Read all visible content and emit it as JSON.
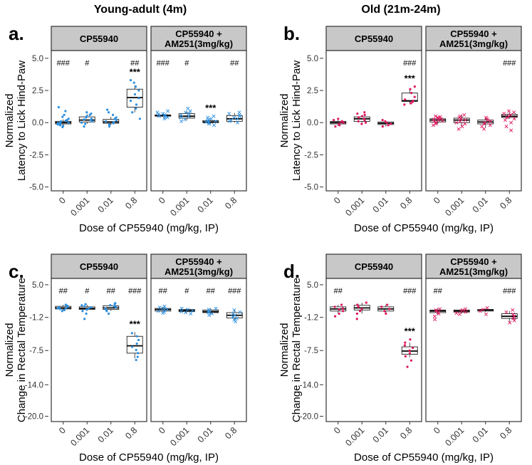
{
  "column_titles": [
    "Young-adult (4m)",
    "Old (21m-24m)"
  ],
  "colors": {
    "young": "#2b8fe0",
    "old": "#e0165f",
    "strip_bg": "#c8c8c8",
    "frame": "#333333",
    "axis_text": "#333333"
  },
  "chart_data": [
    {
      "panel_letter": "a.",
      "type": "box",
      "group": "young",
      "ylabel_lines": [
        "Normalized",
        "Latency to Lick Hind-Paw"
      ],
      "xlabel": "Dose of CP55940 (mg/kg, IP)",
      "ylim": [
        -5.3,
        5.6
      ],
      "yticks": [
        5.0,
        2.5,
        0.0,
        -2.5,
        -5.0
      ],
      "ytick_labels": [
        "5.0",
        "2.5",
        "0.0",
        "-2.5",
        "-5.0"
      ],
      "categories": [
        "0",
        "0.001",
        "0.01",
        "0.8"
      ],
      "facets": [
        {
          "strip_lines": [
            "CP55940"
          ],
          "marker": "dot",
          "boxes": [
            [
              -0.25,
              -0.1,
              0.0,
              0.1,
              0.25
            ],
            [
              -0.1,
              0.05,
              0.2,
              0.45,
              0.65
            ],
            [
              -0.2,
              -0.05,
              0.05,
              0.25,
              0.45
            ],
            [
              0.8,
              1.2,
              1.95,
              2.6,
              2.9
            ]
          ],
          "points": [
            [
              -0.35,
              -0.25,
              -0.2,
              -0.15,
              -0.1,
              -0.05,
              0.0,
              0.0,
              0.05,
              0.1,
              0.15,
              0.2,
              0.3,
              0.45,
              0.6,
              0.9,
              1.2
            ],
            [
              -0.3,
              -0.1,
              0.0,
              0.1,
              0.2,
              0.25,
              0.3,
              0.4,
              0.5,
              0.6,
              0.7,
              0.8
            ],
            [
              -0.3,
              -0.15,
              -0.05,
              0.0,
              0.05,
              0.1,
              0.2,
              0.3,
              0.4,
              0.6,
              0.8,
              1.0
            ],
            [
              0.3,
              0.8,
              1.1,
              1.4,
              1.7,
              1.9,
              2.2,
              2.5,
              2.8,
              3.1,
              3.3
            ]
          ],
          "hash_labels": [
            "###",
            "#",
            "",
            "##"
          ],
          "star_labels": [
            "",
            "",
            "",
            "***"
          ]
        },
        {
          "strip_lines": [
            "CP55940 +",
            "AM251(3mg/kg)"
          ],
          "marker": "cross",
          "boxes": [
            [
              0.45,
              0.5,
              0.55,
              0.6,
              0.65
            ],
            [
              0.2,
              0.35,
              0.5,
              0.7,
              0.85
            ],
            [
              -0.1,
              0.0,
              0.05,
              0.15,
              0.2
            ],
            [
              0.0,
              0.1,
              0.3,
              0.55,
              0.75
            ]
          ],
          "points": [
            [
              0.3,
              0.4,
              0.45,
              0.5,
              0.55,
              0.6,
              0.65,
              0.7,
              0.8,
              0.9
            ],
            [
              0.1,
              0.25,
              0.4,
              0.5,
              0.6,
              0.7,
              0.8,
              0.9,
              1.1
            ],
            [
              -0.2,
              -0.1,
              0.0,
              0.05,
              0.1,
              0.15,
              0.2,
              0.3,
              0.4,
              0.5
            ],
            [
              0.0,
              0.1,
              0.2,
              0.3,
              0.4,
              0.5,
              0.6,
              0.7,
              0.8
            ]
          ],
          "hash_labels": [
            "###",
            "#",
            "",
            "##"
          ],
          "star_labels": [
            "",
            "",
            "***",
            ""
          ]
        }
      ]
    },
    {
      "panel_letter": "b.",
      "type": "box",
      "group": "old",
      "ylabel_lines": [
        "Normalized",
        "Latency to Lick Hind-Paw"
      ],
      "xlabel": "Dose of CP55940 (mg/kg, IP)",
      "ylim": [
        -5.3,
        5.6
      ],
      "yticks": [
        5.0,
        2.5,
        0.0,
        -2.5,
        -5.0
      ],
      "ytick_labels": [
        "5.0",
        "2.5",
        "0.0",
        "-2.5",
        "-5.0"
      ],
      "categories": [
        "0",
        "0.001",
        "0.01",
        "0.8"
      ],
      "facets": [
        {
          "strip_lines": [
            "CP55940"
          ],
          "marker": "dot",
          "boxes": [
            [
              -0.25,
              -0.1,
              0.0,
              0.1,
              0.25
            ],
            [
              0.0,
              0.1,
              0.3,
              0.45,
              0.6
            ],
            [
              -0.3,
              -0.15,
              -0.05,
              0.05,
              0.15
            ],
            [
              1.5,
              1.65,
              1.7,
              2.3,
              2.6
            ]
          ],
          "points": [
            [
              -0.3,
              -0.2,
              -0.1,
              0.0,
              0.05,
              0.1,
              0.2,
              0.3
            ],
            [
              -0.1,
              0.0,
              0.1,
              0.2,
              0.3,
              0.4,
              0.5,
              0.6,
              0.7,
              0.8
            ],
            [
              -0.3,
              -0.2,
              -0.1,
              0.0,
              0.1,
              0.2
            ],
            [
              1.4,
              1.5,
              1.6,
              1.7,
              1.8,
              2.0,
              2.3,
              2.6,
              2.8
            ]
          ],
          "hash_labels": [
            "",
            "",
            "",
            "###"
          ],
          "star_labels": [
            "",
            "",
            "",
            "***"
          ]
        },
        {
          "strip_lines": [
            "CP55940 +",
            "AM251(3mg/kg)"
          ],
          "marker": "cross",
          "boxes": [
            [
              -0.1,
              0.05,
              0.2,
              0.3,
              0.45
            ],
            [
              -0.3,
              0.0,
              0.2,
              0.35,
              0.6
            ],
            [
              -0.4,
              -0.1,
              0.05,
              0.2,
              0.4
            ],
            [
              0.3,
              0.4,
              0.5,
              0.65,
              0.8
            ]
          ],
          "points": [
            [
              -0.2,
              -0.1,
              0.0,
              0.1,
              0.15,
              0.2,
              0.25,
              0.3,
              0.35,
              0.4,
              0.45,
              0.5
            ],
            [
              -0.5,
              -0.3,
              -0.1,
              0.0,
              0.1,
              0.2,
              0.3,
              0.4,
              0.5,
              0.6
            ],
            [
              -0.5,
              -0.3,
              -0.2,
              -0.1,
              0.0,
              0.1,
              0.2,
              0.3,
              0.4
            ],
            [
              -0.6,
              -0.3,
              0.0,
              0.2,
              0.3,
              0.4,
              0.5,
              0.6,
              0.7,
              0.8,
              0.9
            ]
          ],
          "hash_labels": [
            "",
            "",
            "",
            "###"
          ],
          "star_labels": [
            "",
            "",
            "",
            ""
          ]
        }
      ]
    },
    {
      "panel_letter": "c.",
      "type": "box",
      "group": "young",
      "ylabel_lines": [
        "Normalized",
        "Change in Rectal Temperature"
      ],
      "xlabel": "Dose of CP55940 (mg/kg, IP)",
      "ylim": [
        -21.0,
        6.2
      ],
      "yticks": [
        5.0,
        -1.2,
        -7.5,
        -14.0,
        -20.0
      ],
      "ytick_labels": [
        "5.0",
        "-1.2",
        "-7.5",
        "-14.0",
        "-20.0"
      ],
      "categories": [
        "0",
        "0.001",
        "0.01",
        "0.8"
      ],
      "facets": [
        {
          "strip_lines": [
            "CP55940"
          ],
          "marker": "dot",
          "boxes": [
            [
              0.1,
              0.4,
              0.6,
              0.9,
              1.2
            ],
            [
              0.0,
              0.3,
              0.5,
              0.8,
              1.2
            ],
            [
              0.0,
              0.3,
              0.6,
              1.0,
              1.3
            ],
            [
              -9.0,
              -8.0,
              -6.6,
              -4.8,
              -4.0
            ]
          ],
          "points": [
            [
              0.0,
              0.2,
              0.4,
              0.5,
              0.6,
              0.7,
              0.8,
              1.0,
              1.2
            ],
            [
              -1.5,
              -0.5,
              0.0,
              0.3,
              0.5,
              0.7,
              0.9,
              1.1,
              1.3
            ],
            [
              -0.5,
              0.0,
              0.3,
              0.5,
              0.7,
              0.9,
              1.1,
              1.3,
              1.5
            ],
            [
              -9.3,
              -8.7,
              -8.0,
              -7.4,
              -6.8,
              -6.2,
              -5.5,
              -4.8,
              -4.2
            ]
          ],
          "hash_labels": [
            "##",
            "#",
            "##",
            "###"
          ],
          "star_labels": [
            "",
            "",
            "",
            "***"
          ]
        },
        {
          "strip_lines": [
            "CP55940 +",
            "AM251(3mg/kg)"
          ],
          "marker": "cross",
          "boxes": [
            [
              -0.2,
              0.0,
              0.3,
              0.5,
              0.8
            ],
            [
              -0.3,
              -0.1,
              0.1,
              0.3,
              0.5
            ],
            [
              -0.6,
              -0.3,
              -0.1,
              0.2,
              0.5
            ],
            [
              -1.8,
              -1.3,
              -0.8,
              -0.3,
              0.2
            ]
          ],
          "points": [
            [
              -0.4,
              -0.2,
              0.0,
              0.2,
              0.3,
              0.5,
              0.7,
              0.9
            ],
            [
              -0.5,
              -0.3,
              -0.1,
              0.1,
              0.3,
              0.5
            ],
            [
              -0.8,
              -0.5,
              -0.3,
              -0.1,
              0.1,
              0.3,
              0.5
            ],
            [
              -2.0,
              -1.7,
              -1.4,
              -1.1,
              -0.8,
              -0.5,
              -0.2,
              0.2
            ]
          ],
          "hash_labels": [
            "##",
            "#",
            "##",
            "###"
          ],
          "star_labels": [
            "",
            "",
            "",
            ""
          ]
        }
      ]
    },
    {
      "panel_letter": "d.",
      "type": "box",
      "group": "old",
      "ylabel_lines": [
        "Normalized",
        "Change in Rectal Temperature"
      ],
      "xlabel": "Dose of CP55940 (mg/kg, IP)",
      "ylim": [
        -21.0,
        6.2
      ],
      "yticks": [
        5.0,
        -1.2,
        -7.5,
        -14.0,
        -20.0
      ],
      "ytick_labels": [
        "5.0",
        "-1.2",
        "-7.5",
        "-14.0",
        "-20.0"
      ],
      "categories": [
        "0",
        "0.001",
        "0.01",
        "0.8"
      ],
      "facets": [
        {
          "strip_lines": [
            "CP55940"
          ],
          "marker": "dot",
          "boxes": [
            [
              -0.4,
              0.0,
              0.4,
              0.8,
              1.2
            ],
            [
              -0.5,
              0.2,
              0.6,
              1.1,
              1.6
            ],
            [
              -0.5,
              0.0,
              0.4,
              0.8,
              1.2
            ],
            [
              -8.8,
              -8.2,
              -7.6,
              -6.8,
              -6.0
            ]
          ],
          "points": [
            [
              -1.0,
              -0.5,
              0.0,
              0.3,
              0.5,
              0.8,
              1.2
            ],
            [
              -1.5,
              -0.5,
              0.0,
              0.4,
              0.8,
              1.2,
              1.6
            ],
            [
              -0.5,
              0.0,
              0.4,
              0.8,
              1.2
            ],
            [
              -10.6,
              -9.4,
              -8.6,
              -8.0,
              -7.5,
              -7.0,
              -6.5,
              -6.0,
              -5.4
            ]
          ],
          "hash_labels": [
            "##",
            "",
            "",
            "###"
          ],
          "star_labels": [
            "",
            "",
            "",
            "***"
          ]
        },
        {
          "strip_lines": [
            "CP55940 +",
            "AM251(3mg/kg)"
          ],
          "marker": "cross",
          "boxes": [
            [
              -0.8,
              -0.3,
              0.0,
              0.2,
              0.5
            ],
            [
              -0.5,
              -0.2,
              0.0,
              0.2,
              0.4
            ],
            [
              -0.2,
              0.0,
              0.2,
              0.3,
              0.5
            ],
            [
              -2.0,
              -1.4,
              -1.0,
              -0.5,
              0.0
            ]
          ],
          "points": [
            [
              -1.6,
              -1.0,
              -0.5,
              -0.2,
              0.0,
              0.2,
              0.4
            ],
            [
              -0.6,
              -0.4,
              -0.2,
              0.0,
              0.2,
              0.4
            ],
            [
              -0.6,
              0.0,
              0.3,
              0.6
            ],
            [
              -2.2,
              -1.8,
              -1.4,
              -1.0,
              -0.6,
              -0.2,
              0.2
            ]
          ],
          "hash_labels": [
            "##",
            "",
            "",
            "###"
          ],
          "star_labels": [
            "",
            "",
            "",
            ""
          ]
        }
      ]
    }
  ]
}
